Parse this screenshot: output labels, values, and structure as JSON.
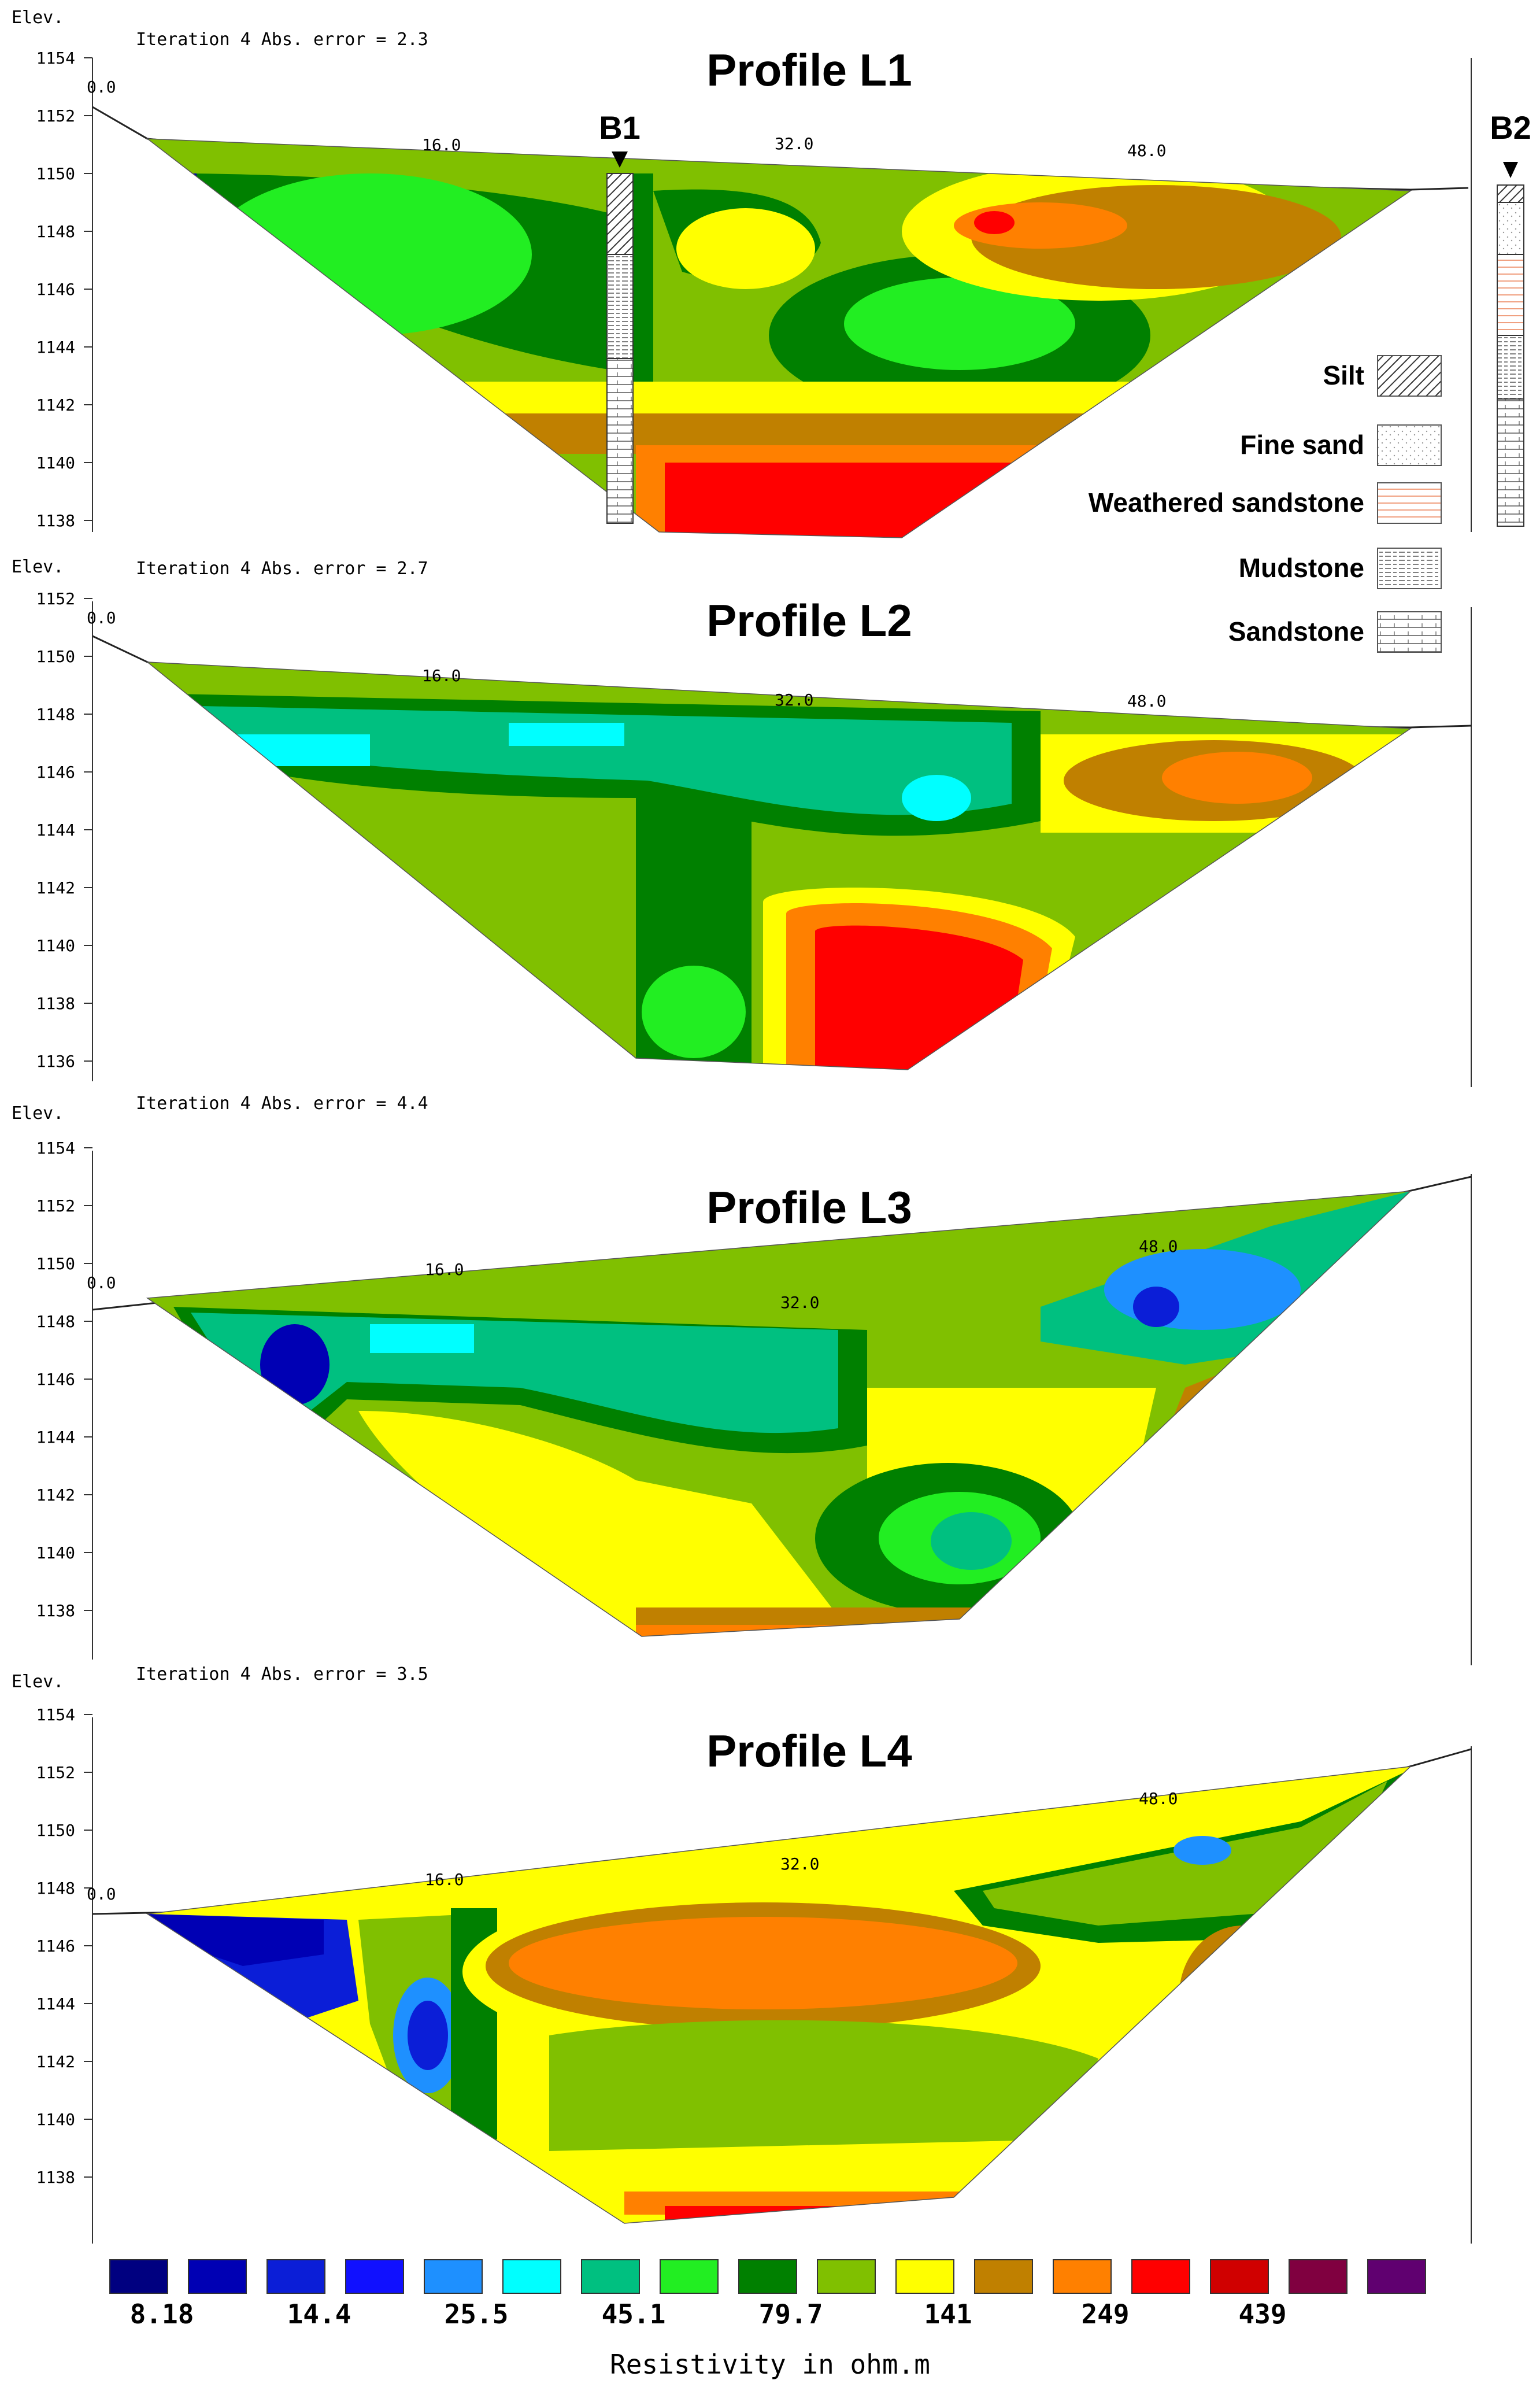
{
  "profiles": [
    {
      "title": "Profile L1",
      "elev_label": "Elev.",
      "iteration": "Iteration 4 Abs. error = 2.3",
      "distances": [
        "0.0",
        "16.0",
        "32.0",
        "48.0"
      ],
      "elevations": [
        "1154",
        "1152",
        "1150",
        "1148",
        "1146",
        "1144",
        "1142",
        "1140",
        "1138"
      ]
    },
    {
      "title": "Profile L2",
      "elev_label": "Elev.",
      "iteration": "Iteration 4 Abs. error = 2.7",
      "distances": [
        "0.0",
        "16.0",
        "32.0",
        "48.0"
      ],
      "elevations": [
        "1152",
        "1150",
        "1148",
        "1146",
        "1144",
        "1142",
        "1140",
        "1138",
        "1136"
      ]
    },
    {
      "title": "Profile L3",
      "elev_label": "Elev.",
      "iteration": "Iteration 4 Abs. error = 4.4",
      "distances": [
        "0.0",
        "16.0",
        "32.0",
        "48.0"
      ],
      "elevations": [
        "1154",
        "1152",
        "1150",
        "1148",
        "1146",
        "1144",
        "1142",
        "1140",
        "1138"
      ]
    },
    {
      "title": "Profile L4",
      "elev_label": "Elev.",
      "iteration": "Iteration 4 Abs. error = 3.5",
      "distances": [
        "0.0",
        "16.0",
        "32.0",
        "48.0"
      ],
      "elevations": [
        "1154",
        "1152",
        "1150",
        "1148",
        "1146",
        "1144",
        "1142",
        "1140",
        "1138"
      ]
    }
  ],
  "boreholes": {
    "b1": "B1",
    "b2": "B2"
  },
  "lithology_legend": [
    {
      "label": "Silt",
      "pattern": "silt"
    },
    {
      "label": "Fine sand",
      "pattern": "dots"
    },
    {
      "label": "Weathered sandstone",
      "pattern": "weathered"
    },
    {
      "label": "Mudstone",
      "pattern": "mud"
    },
    {
      "label": "Sandstone",
      "pattern": "sand"
    }
  ],
  "colorbar": {
    "title": "Resistivity in ohm.m",
    "colors": [
      "#000080",
      "#0000b4",
      "#0b1ed7",
      "#1010ff",
      "#1e90ff",
      "#00ffff",
      "#00c080",
      "#22ee22",
      "#008000",
      "#80c000",
      "#ffff00",
      "#c08000",
      "#ff8000",
      "#ff0000",
      "#d00000",
      "#800040",
      "#600070"
    ],
    "labels": [
      "8.18",
      "14.4",
      "25.5",
      "45.1",
      "79.7",
      "141",
      "249",
      "439"
    ]
  }
}
